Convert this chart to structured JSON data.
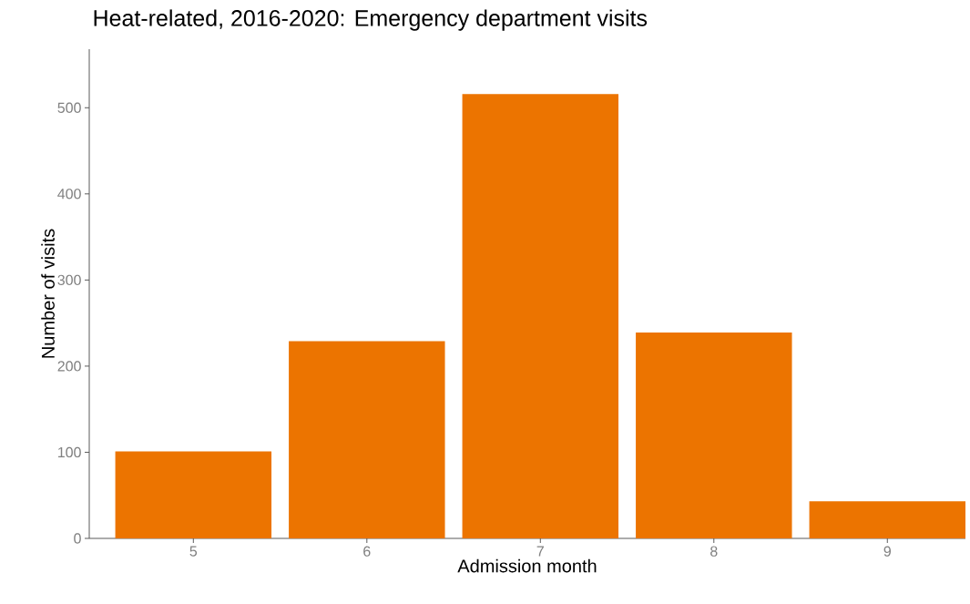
{
  "chart_data": {
    "type": "bar",
    "title": "Heat-related, 2016-2020: Emergency department visits",
    "xlabel": "Admission month",
    "ylabel": "Number of visits",
    "categories": [
      "5",
      "6",
      "7",
      "8",
      "9"
    ],
    "values": [
      101,
      229,
      516,
      239,
      43
    ],
    "color": "#ec7400",
    "ylim": [
      0,
      568
    ],
    "yticks": [
      0,
      100,
      200,
      300,
      400,
      500
    ],
    "grid": false
  }
}
